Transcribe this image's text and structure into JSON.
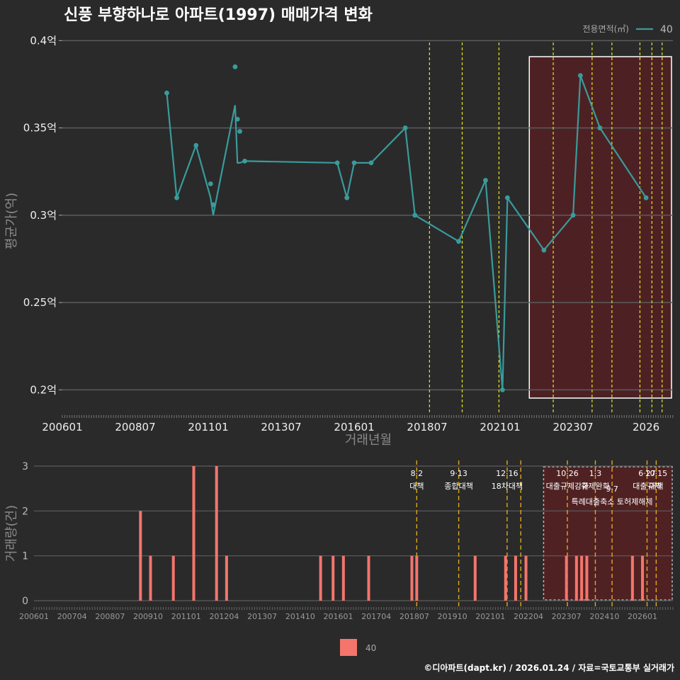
{
  "chart_data": [
    {
      "type": "line",
      "title": "신풍 부향하나로 아파트(1997) 매매가격 변화",
      "xlabel": "거래년월",
      "ylabel": "평균가(억)",
      "ylim": [
        0.19,
        0.405
      ],
      "yticks": [
        {
          "v": 0.2,
          "label": "0.2억"
        },
        {
          "v": 0.25,
          "label": "0.25억"
        },
        {
          "v": 0.3,
          "label": "0.3억"
        },
        {
          "v": 0.35,
          "label": "0.35억"
        },
        {
          "v": 0.4,
          "label": "0.4억"
        }
      ],
      "xticks": [
        "200601",
        "200807",
        "201101",
        "201307",
        "201601",
        "201807",
        "202101",
        "202307",
        "2026"
      ],
      "legend": {
        "title": "전용면적(㎡)",
        "entries": [
          "40"
        ],
        "color": "#3a9b9b"
      },
      "series": [
        {
          "name": "40",
          "x": [
            2009.58,
            2009.92,
            2010.58,
            2011.08,
            2011.17,
            2011.92,
            2012.0,
            2012.08,
            2012.25,
            2015.42,
            2015.75,
            2016.0,
            2016.58,
            2017.75,
            2018.08,
            2019.58,
            2020.5,
            2021.08,
            2021.25,
            2022.5,
            2023.5,
            2023.75,
            2024.42,
            2026.0
          ],
          "y": [
            0.37,
            0.31,
            0.34,
            0.31,
            0.3,
            0.363,
            0.33,
            0.33,
            0.331,
            0.33,
            0.31,
            0.33,
            0.33,
            0.35,
            0.3,
            0.285,
            0.32,
            0.2,
            0.31,
            0.28,
            0.3,
            0.38,
            0.35,
            0.31
          ]
        }
      ],
      "scatter_points": [
        {
          "x": 2009.58,
          "y": 0.37
        },
        {
          "x": 2009.92,
          "y": 0.31
        },
        {
          "x": 2010.58,
          "y": 0.34
        },
        {
          "x": 2011.08,
          "y": 0.318
        },
        {
          "x": 2011.17,
          "y": 0.306
        },
        {
          "x": 2011.92,
          "y": 0.385
        },
        {
          "x": 2012.0,
          "y": 0.355
        },
        {
          "x": 2012.08,
          "y": 0.348
        },
        {
          "x": 2012.25,
          "y": 0.331
        },
        {
          "x": 2015.42,
          "y": 0.33
        },
        {
          "x": 2015.75,
          "y": 0.31
        },
        {
          "x": 2016.0,
          "y": 0.33
        },
        {
          "x": 2016.58,
          "y": 0.33
        },
        {
          "x": 2017.75,
          "y": 0.35
        },
        {
          "x": 2018.08,
          "y": 0.3
        },
        {
          "x": 2019.58,
          "y": 0.285
        },
        {
          "x": 2020.5,
          "y": 0.32
        },
        {
          "x": 2021.08,
          "y": 0.2
        },
        {
          "x": 2021.25,
          "y": 0.31
        },
        {
          "x": 2022.5,
          "y": 0.28
        },
        {
          "x": 2023.5,
          "y": 0.3
        },
        {
          "x": 2023.75,
          "y": 0.38
        },
        {
          "x": 2024.42,
          "y": 0.35
        },
        {
          "x": 2026.0,
          "y": 0.31
        }
      ],
      "policy_lines": [
        2018.58,
        2019.7,
        2020.96,
        2022.82,
        2024.15,
        2024.83,
        2025.79,
        2026.2,
        2026.55
      ],
      "highlight_range": [
        2022.0,
        2027.0
      ]
    },
    {
      "type": "bar",
      "xlabel": "",
      "ylabel": "거래량(건)",
      "ylim": [
        0,
        3
      ],
      "yticks": [
        0,
        1,
        2,
        3
      ],
      "xticks": [
        "200601",
        "200704",
        "200807",
        "200910",
        "201101",
        "201204",
        "201307",
        "201410",
        "201601",
        "201704",
        "201807",
        "201910",
        "202101",
        "202204",
        "202307",
        "202410",
        "202601"
      ],
      "legend": {
        "entries": [
          "40"
        ],
        "color": "#f4756c"
      },
      "series": [
        {
          "name": "40",
          "x": [
            2009.5,
            2009.83,
            2010.58,
            2011.25,
            2012.0,
            2012.33,
            2015.42,
            2015.83,
            2016.17,
            2017.0,
            2018.42,
            2018.58,
            2020.5,
            2021.5,
            2021.83,
            2022.17,
            2023.5,
            2023.83,
            2024.0,
            2024.17,
            2025.67,
            2026.0
          ],
          "values": [
            2,
            1,
            1,
            3,
            3,
            1,
            1,
            1,
            1,
            1,
            1,
            1,
            1,
            1,
            1,
            1,
            1,
            1,
            1,
            1,
            1,
            1
          ]
        }
      ],
      "policy_events": [
        {
          "x": 2018.58,
          "date": "8·2",
          "name": "대책",
          "row": 0
        },
        {
          "x": 2019.96,
          "date": "9·13",
          "name": "종합대책",
          "row": 0
        },
        {
          "x": 2021.55,
          "date": "12·16",
          "name": "18차대책",
          "row": 0
        },
        {
          "x": 2023.53,
          "date": "10·26",
          "name": "대출규제강화",
          "row": 0
        },
        {
          "x": 2024.45,
          "date": "1·3",
          "name": "규제완화",
          "row": 0
        },
        {
          "x": 2025.0,
          "date": "9·7",
          "name": "특례대출축소 토허제해제",
          "row": 1
        },
        {
          "x": 2026.15,
          "date": "6·27",
          "name": "대출규제",
          "row": 0
        },
        {
          "x": 2026.45,
          "date": "10·15",
          "name": "대책",
          "row": 0
        }
      ],
      "policy_lines": [
        2018.58,
        2019.96,
        2021.55,
        2022.0,
        2023.53,
        2024.45,
        2025.0,
        2026.15,
        2026.45
      ],
      "highlight_range": [
        2022.75,
        2027.0
      ]
    }
  ],
  "footer": "©디아파트(dapt.kr) / 2026.01.24 / 자료=국토교통부 실거래가"
}
